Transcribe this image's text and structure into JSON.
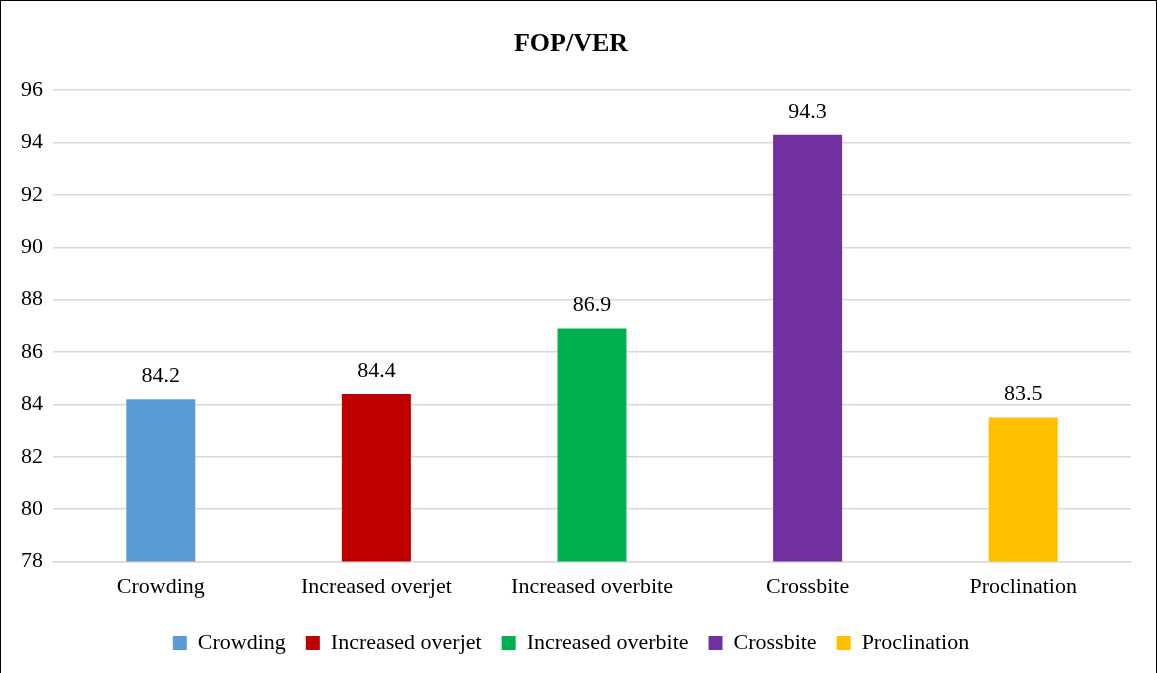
{
  "chart_data": {
    "type": "bar",
    "title": "FOP/VER",
    "categories": [
      "Crowding",
      "Increased overjet",
      "Increased overbite",
      "Crossbite",
      "Proclination"
    ],
    "series": [
      {
        "name": "Crowding",
        "color": "#5b9bd5",
        "values": [
          84.2,
          null,
          null,
          null,
          null
        ]
      },
      {
        "name": "Increased overjet",
        "color": "#c00000",
        "values": [
          null,
          84.4,
          null,
          null,
          null
        ]
      },
      {
        "name": "Increased overbite",
        "color": "#00b050",
        "values": [
          null,
          null,
          86.9,
          null,
          null
        ]
      },
      {
        "name": "Crossbite",
        "color": "#7030a0",
        "values": [
          null,
          null,
          null,
          94.3,
          null
        ]
      },
      {
        "name": "Proclination",
        "color": "#ffc000",
        "values": [
          null,
          null,
          null,
          null,
          83.5
        ]
      }
    ],
    "ylim": [
      78,
      96
    ],
    "yticks": [
      78,
      80,
      82,
      84,
      86,
      88,
      90,
      92,
      94,
      96
    ],
    "grid": "y",
    "legend": "bottom",
    "data_labels": true
  }
}
